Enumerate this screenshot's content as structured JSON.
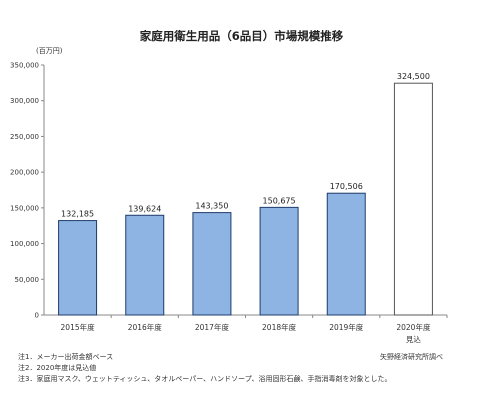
{
  "chart_data": {
    "type": "bar",
    "title": "家庭用衛生用品（6品目）市場規模推移",
    "ylabel": "(百万円)",
    "categories": [
      "2015年度",
      "2016年度",
      "2017年度",
      "2018年度",
      "2019年度",
      "2020年度"
    ],
    "category_sublabels": [
      "",
      "",
      "",
      "",
      "",
      "見込"
    ],
    "values": [
      132185,
      139624,
      143350,
      150675,
      170506,
      324500
    ],
    "value_labels": [
      "132,185",
      "139,624",
      "143,350",
      "150,675",
      "170,506",
      "324,500"
    ],
    "projected": [
      false,
      false,
      false,
      false,
      false,
      true
    ],
    "ylim": [
      0,
      350000
    ],
    "yticks": [
      0,
      50000,
      100000,
      150000,
      200000,
      250000,
      300000,
      350000
    ],
    "ytick_labels": [
      "0",
      "50,000",
      "100,000",
      "150,000",
      "200,000",
      "250,000",
      "300,000",
      "350,000"
    ],
    "grid": false,
    "colors": {
      "actual": "#8eb4e3",
      "actual_edge": "#1f3b6b",
      "projected": "#ffffff",
      "projected_edge": "#555555"
    }
  },
  "notes": [
    "注1．メーカー出荷金額ベース",
    "注2．2020年度は見込値",
    "注3．家庭用マスク、ウェットティッシュ、タオルペーパー、ハンドソープ、浴用固形石鹸、手指消毒剤を対象とした。"
  ],
  "source": "矢野経済研究所調べ"
}
